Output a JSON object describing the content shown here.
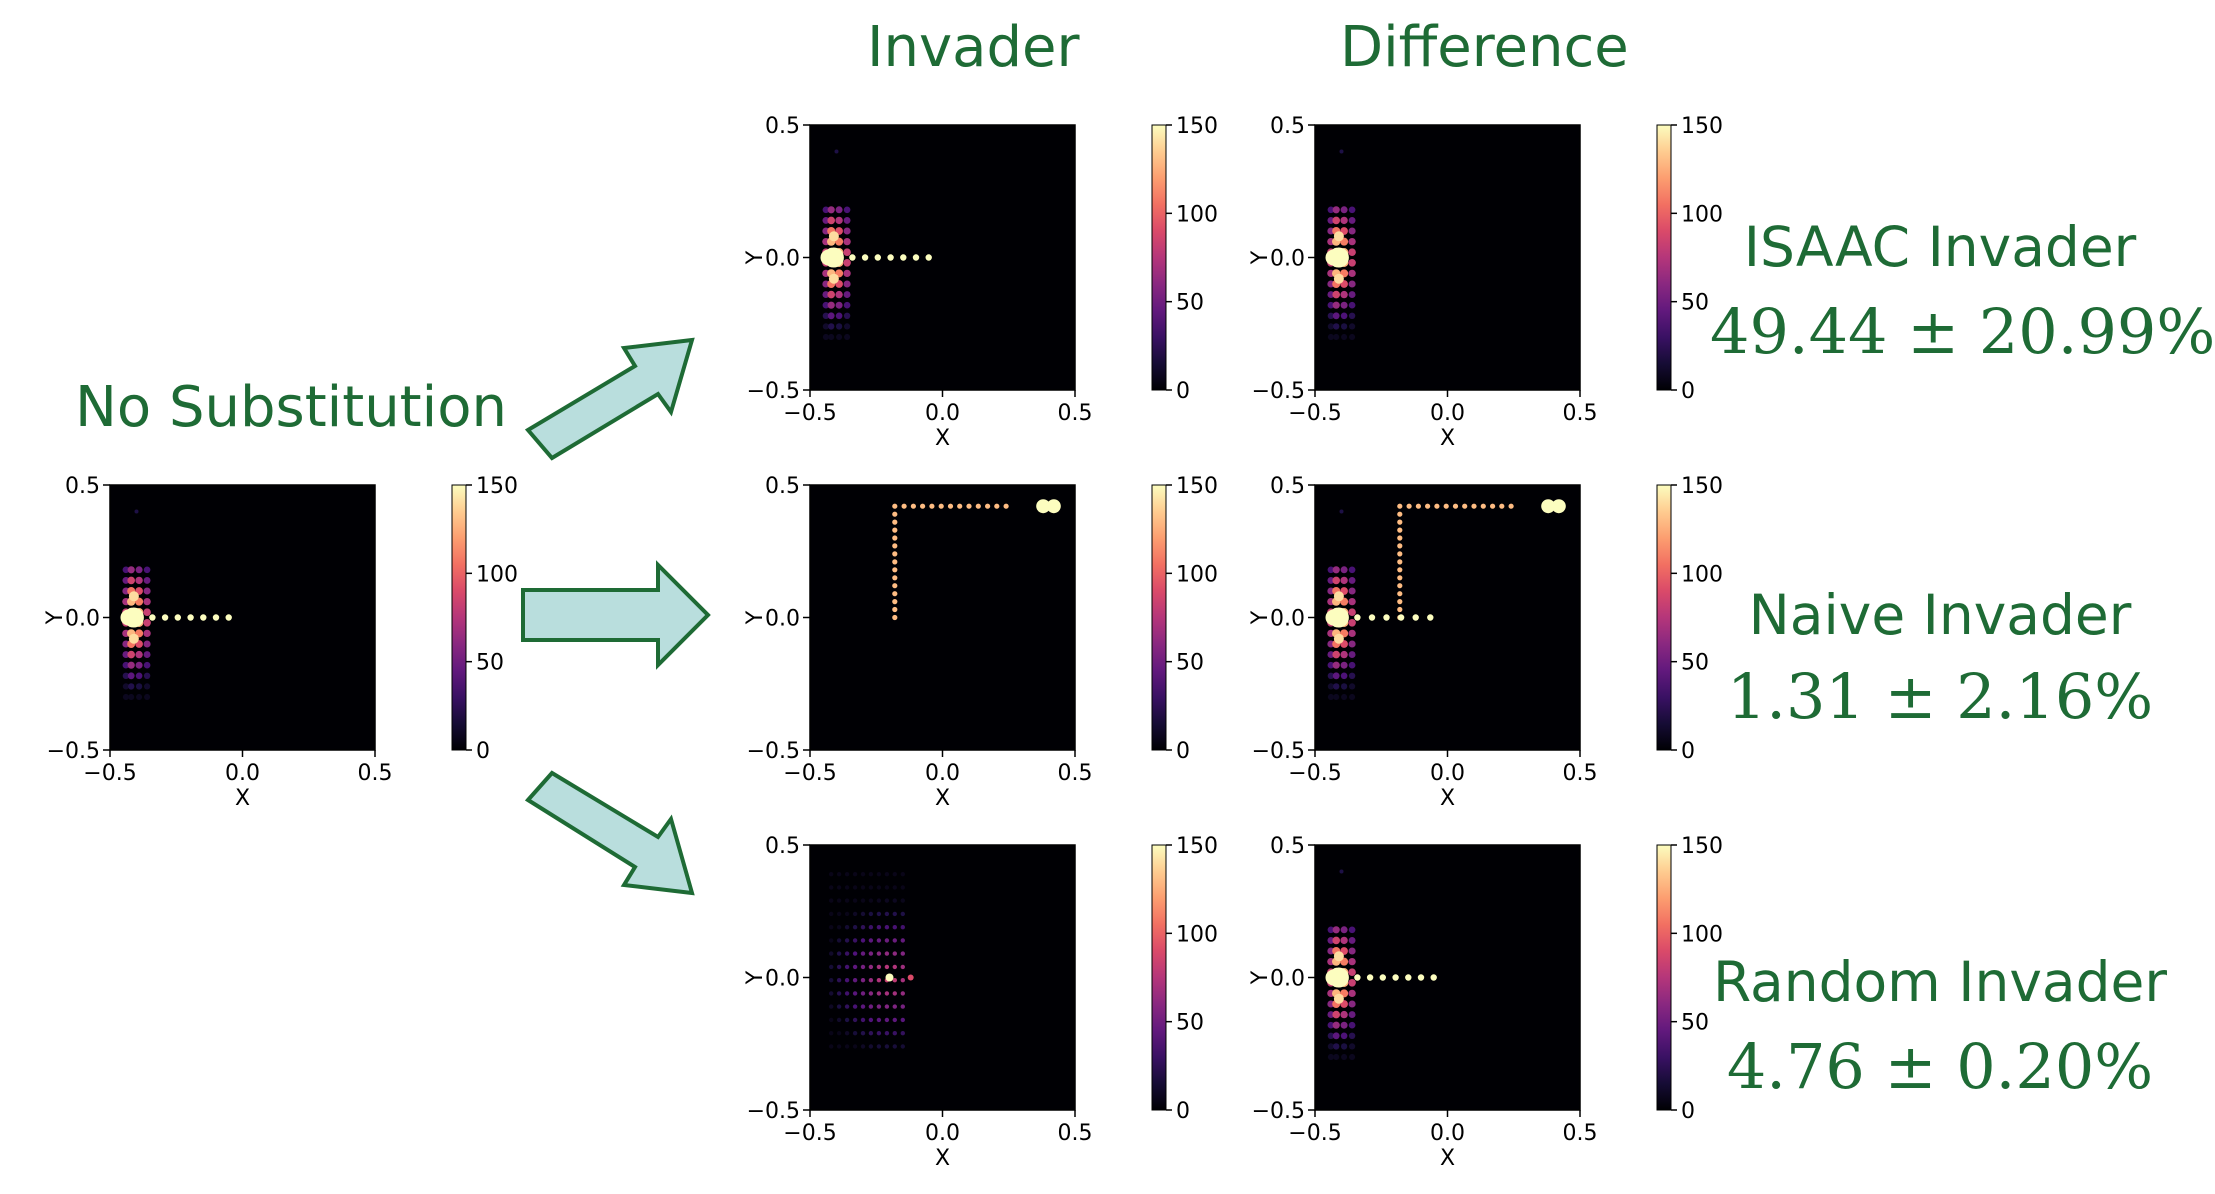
{
  "titles": {
    "no_substitution": "No Substitution",
    "invader": "Invader",
    "difference": "Difference"
  },
  "results": [
    {
      "name": "ISAAC Invader",
      "value": "49.44 ± 20.99%"
    },
    {
      "name": "Naive Invader",
      "value": "1.31 ± 2.16%"
    },
    {
      "name": "Random Invader",
      "value": "4.76 ± 0.20%"
    }
  ],
  "colors": {
    "title_green": "#1e6b35",
    "arrow_fill": "#b9dedd",
    "arrow_stroke": "#1e6b35"
  },
  "chart_data": [
    {
      "id": "no_substitution",
      "type": "heatmap",
      "pattern": "baseline",
      "xlabel": "X",
      "ylabel": "Y",
      "xlim": [
        -0.5,
        0.5
      ],
      "ylim": [
        -0.5,
        0.5
      ],
      "xticks": [
        "−0.5",
        "0.0",
        "0.5"
      ],
      "yticks": [
        "0.5",
        "0.0",
        "−0.5"
      ],
      "colorbar": {
        "range": [
          0,
          150
        ],
        "ticks": [
          "150",
          "100",
          "50",
          "0"
        ],
        "colormap": "magma"
      }
    },
    {
      "id": "invader_isaac",
      "type": "heatmap",
      "pattern": "baseline",
      "xlabel": "X",
      "ylabel": "Y",
      "xlim": [
        -0.5,
        0.5
      ],
      "ylim": [
        -0.5,
        0.5
      ],
      "xticks": [
        "−0.5",
        "0.0",
        "0.5"
      ],
      "yticks": [
        "0.5",
        "0.0",
        "−0.5"
      ],
      "colorbar": {
        "range": [
          0,
          150
        ],
        "ticks": [
          "150",
          "100",
          "50",
          "0"
        ],
        "colormap": "magma"
      }
    },
    {
      "id": "difference_isaac",
      "type": "heatmap",
      "pattern": "cluster",
      "xlabel": "X",
      "ylabel": "Y",
      "xlim": [
        -0.5,
        0.5
      ],
      "ylim": [
        -0.5,
        0.5
      ],
      "xticks": [
        "−0.5",
        "0.0",
        "0.5"
      ],
      "yticks": [
        "0.5",
        "0.0",
        "−0.5"
      ],
      "colorbar": {
        "range": [
          0,
          150
        ],
        "ticks": [
          "150",
          "100",
          "50",
          "0"
        ],
        "colormap": "magma"
      }
    },
    {
      "id": "invader_naive",
      "type": "heatmap",
      "pattern": "lpath",
      "xlabel": "X",
      "ylabel": "Y",
      "xlim": [
        -0.5,
        0.5
      ],
      "ylim": [
        -0.5,
        0.5
      ],
      "xticks": [
        "−0.5",
        "0.0",
        "0.5"
      ],
      "yticks": [
        "0.5",
        "0.0",
        "−0.5"
      ],
      "colorbar": {
        "range": [
          0,
          150
        ],
        "ticks": [
          "150",
          "100",
          "50",
          "0"
        ],
        "colormap": "magma"
      }
    },
    {
      "id": "difference_naive",
      "type": "heatmap",
      "pattern": "lpath_diff",
      "xlabel": "X",
      "ylabel": "Y",
      "xlim": [
        -0.5,
        0.5
      ],
      "ylim": [
        -0.5,
        0.5
      ],
      "xticks": [
        "−0.5",
        "0.0",
        "0.5"
      ],
      "yticks": [
        "0.5",
        "0.0",
        "−0.5"
      ],
      "colorbar": {
        "range": [
          0,
          150
        ],
        "ticks": [
          "150",
          "100",
          "50",
          "0"
        ],
        "colormap": "magma"
      }
    },
    {
      "id": "invader_random",
      "type": "heatmap",
      "pattern": "diffuse",
      "xlabel": "X",
      "ylabel": "Y",
      "xlim": [
        -0.5,
        0.5
      ],
      "ylim": [
        -0.5,
        0.5
      ],
      "xticks": [
        "−0.5",
        "0.0",
        "0.5"
      ],
      "yticks": [
        "0.5",
        "0.0",
        "−0.5"
      ],
      "colorbar": {
        "range": [
          0,
          150
        ],
        "ticks": [
          "150",
          "100",
          "50",
          "0"
        ],
        "colormap": "magma"
      }
    },
    {
      "id": "difference_random",
      "type": "heatmap",
      "pattern": "baseline",
      "xlabel": "X",
      "ylabel": "Y",
      "xlim": [
        -0.5,
        0.5
      ],
      "ylim": [
        -0.5,
        0.5
      ],
      "xticks": [
        "−0.5",
        "0.0",
        "0.5"
      ],
      "yticks": [
        "0.5",
        "0.0",
        "−0.5"
      ],
      "colorbar": {
        "range": [
          0,
          150
        ],
        "ticks": [
          "150",
          "100",
          "50",
          "0"
        ],
        "colormap": "magma"
      }
    }
  ]
}
